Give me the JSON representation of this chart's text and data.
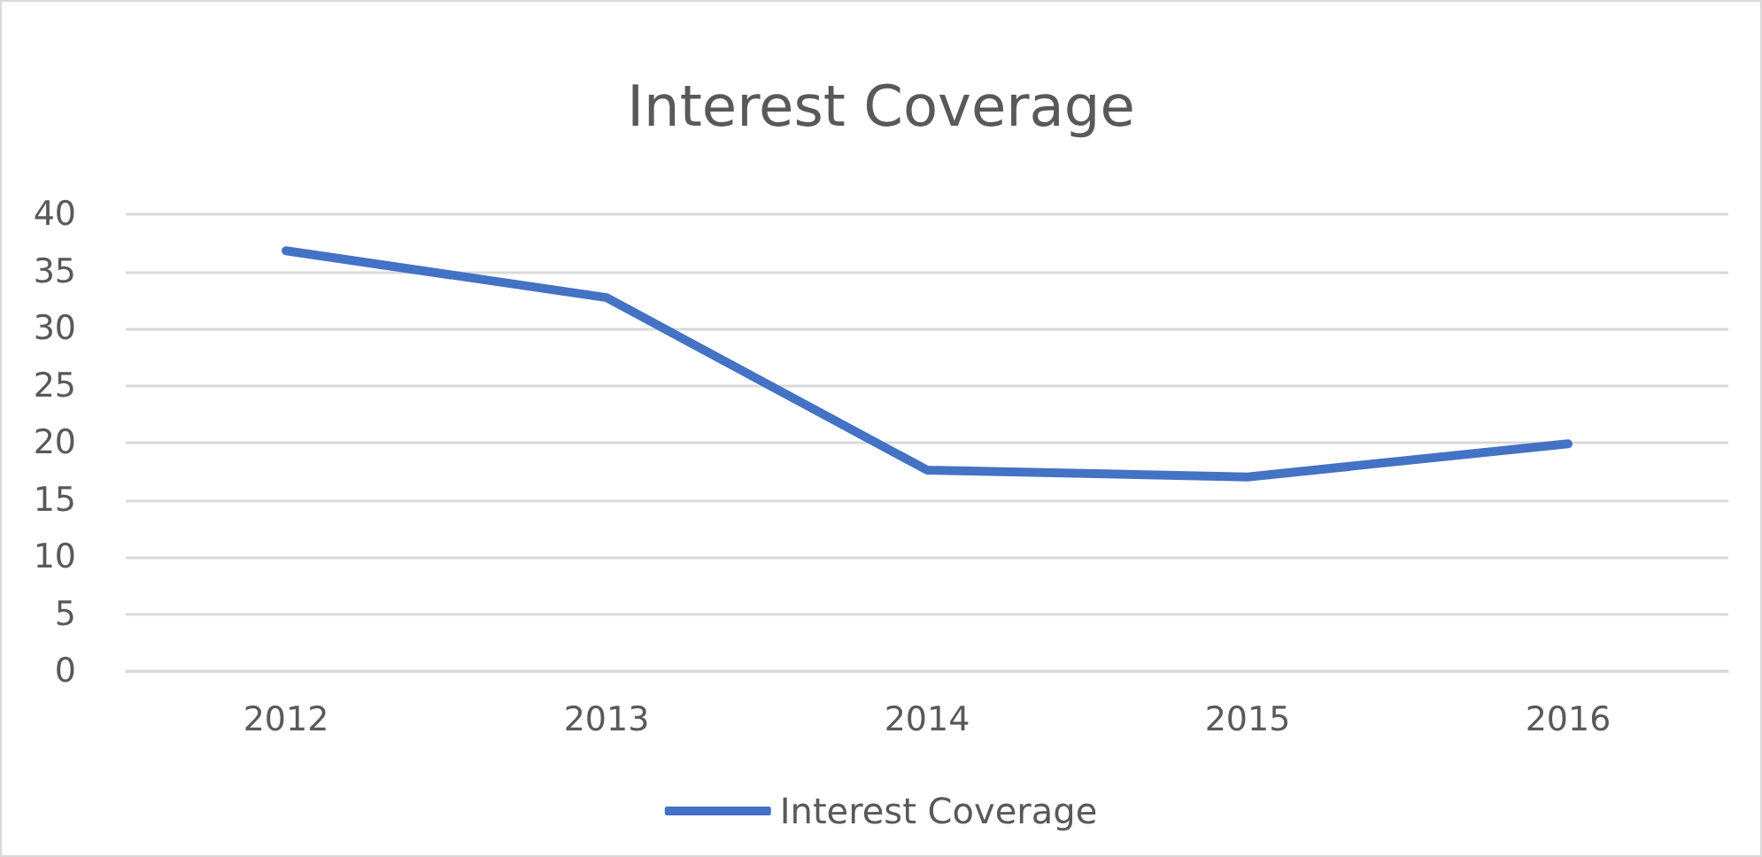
{
  "chart_data": {
    "type": "line",
    "title": "Interest Coverage",
    "categories": [
      "2012",
      "2013",
      "2014",
      "2015",
      "2016"
    ],
    "series": [
      {
        "name": "Interest Coverage",
        "color": "#4472c4",
        "values": [
          36.8,
          32.7,
          17.6,
          17.0,
          19.9
        ]
      }
    ],
    "ylim": [
      0,
      40
    ],
    "yticks": [
      0,
      5,
      10,
      15,
      20,
      25,
      30,
      35,
      40
    ],
    "grid": "y",
    "legend": "bottom",
    "marker": "none",
    "line_style": "solid"
  }
}
